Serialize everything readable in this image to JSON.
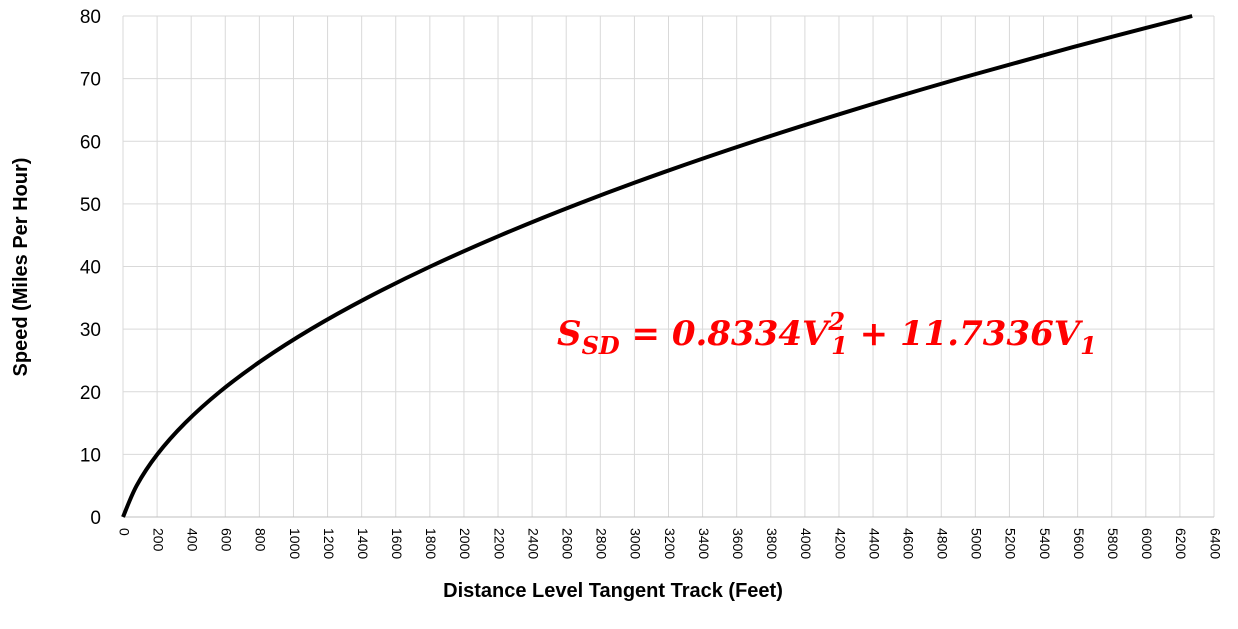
{
  "chart_data": {
    "type": "line",
    "x_label": "Distance Level Tangent Track (Feet)",
    "y_label": "Speed (Miles Per Hour)",
    "annotation": [
      "S",
      "SD",
      " = 0.8334",
      "V",
      "2",
      "1",
      " + 11.7336",
      "V",
      "1"
    ],
    "series": [
      {
        "color": "#000000",
        "x": [
          0,
          80,
          201,
          364,
          568,
          814,
          1102,
          1432,
          1803,
          2216,
          2670,
          3166,
          3704,
          4284,
          4905,
          5568,
          6272
        ],
        "values": [
          0,
          5,
          10,
          15,
          20,
          25,
          30,
          35,
          40,
          45,
          50,
          55,
          60,
          65,
          70,
          75,
          80
        ]
      }
    ],
    "xlim": [
      0,
      6400
    ],
    "xticks": [
      0,
      200,
      400,
      600,
      800,
      1000,
      1200,
      1400,
      1600,
      1800,
      2000,
      2200,
      2400,
      2600,
      2800,
      3000,
      3200,
      3400,
      3600,
      3800,
      4000,
      4200,
      4400,
      4600,
      4800,
      5000,
      5200,
      5400,
      5600,
      5800,
      6000,
      6200,
      6400
    ],
    "ylim": [
      0,
      80
    ],
    "yticks": [
      0,
      10,
      20,
      30,
      40,
      50,
      60,
      70,
      80
    ],
    "grid": true
  }
}
